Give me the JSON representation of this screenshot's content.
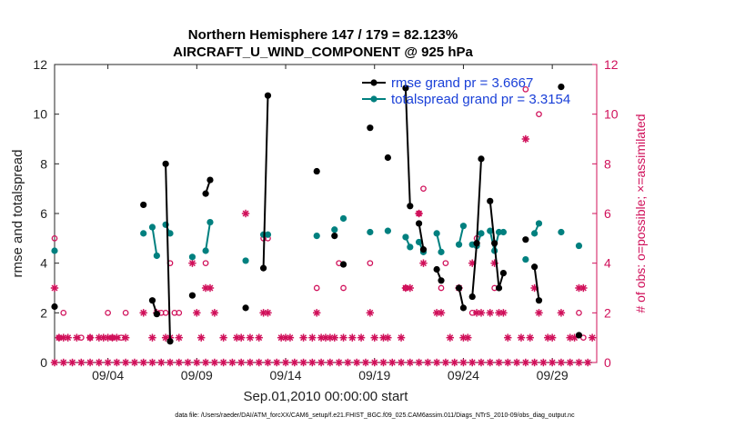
{
  "chart_data": {
    "type": "line",
    "title_line1": "Northern Hemisphere 147 / 179 = 82.123%",
    "title_line2": "AIRCRAFT_U_WIND_COMPONENT @ 925 hPa",
    "xlabel": "Sep.01,2010 00:00:00 start",
    "ylabel_left": "rmse and totalspread",
    "ylabel_right": "# of obs: o=possible; ×=assimilated",
    "footer": "data file: /Users/raeder/DAI/ATM_forcXX/CAM6_setup/f.e21.FHIST_BGC.f09_025.CAM6assim.011/Diags_NTrS_2010-09/obs_diag_output.nc",
    "xlim": [
      0,
      30.5
    ],
    "ylim_left": [
      0,
      12
    ],
    "ylim_right": [
      0,
      12
    ],
    "yticks": [
      "0",
      "2",
      "4",
      "6",
      "8",
      "10",
      "12"
    ],
    "xticks": [
      {
        "x": 3,
        "label": "09/04"
      },
      {
        "x": 8,
        "label": "09/09"
      },
      {
        "x": 13,
        "label": "09/14"
      },
      {
        "x": 18,
        "label": "09/19"
      },
      {
        "x": 23,
        "label": "09/24"
      },
      {
        "x": 28,
        "label": "09/29"
      }
    ],
    "colors": {
      "rmse": "#000000",
      "spread": "#00807f",
      "obs": "#d0105a",
      "legend_text": "#1a40d8"
    },
    "legend": [
      {
        "key": "rmse",
        "label": "rmse grand pr = 3.6667"
      },
      {
        "key": "spread",
        "label": "totalspread grand pr = 3.3154"
      }
    ],
    "rmse_segments": [
      [
        [
          0,
          2.25
        ]
      ],
      [
        [
          5.0,
          6.35
        ]
      ],
      [
        [
          5.5,
          2.5
        ],
        [
          5.75,
          1.95
        ]
      ],
      [
        [
          6.25,
          8.0
        ],
        [
          6.5,
          0.85
        ]
      ],
      [
        [
          7.75,
          2.7
        ]
      ],
      [
        [
          8.5,
          6.8
        ],
        [
          8.75,
          7.35
        ]
      ],
      [
        [
          10.75,
          2.2
        ]
      ],
      [
        [
          11.75,
          3.8
        ],
        [
          12.0,
          10.75
        ]
      ],
      [
        [
          14.75,
          7.7
        ]
      ],
      [
        [
          15.75,
          5.1
        ]
      ],
      [
        [
          16.25,
          3.95
        ]
      ],
      [
        [
          17.75,
          9.45
        ]
      ],
      [
        [
          18.75,
          8.25
        ]
      ],
      [
        [
          19.75,
          11.05
        ],
        [
          20.0,
          6.3
        ]
      ],
      [
        [
          20.5,
          5.6
        ],
        [
          20.75,
          4.55
        ]
      ],
      [
        [
          21.5,
          3.75
        ],
        [
          21.75,
          3.3
        ]
      ],
      [
        [
          22.75,
          3.0
        ],
        [
          23.0,
          2.2
        ]
      ],
      [
        [
          23.5,
          2.65
        ],
        [
          23.75,
          4.8
        ],
        [
          24.0,
          8.2
        ]
      ],
      [
        [
          24.5,
          6.5
        ],
        [
          24.75,
          4.8
        ],
        [
          25.0,
          3.0
        ],
        [
          25.25,
          3.6
        ]
      ],
      [
        [
          26.5,
          4.95
        ]
      ],
      [
        [
          27.0,
          3.85
        ],
        [
          27.25,
          2.5
        ]
      ],
      [
        [
          28.5,
          11.1
        ]
      ],
      [
        [
          29.5,
          1.1
        ]
      ]
    ],
    "spread_segments": [
      [
        [
          0,
          4.5
        ]
      ],
      [
        [
          5.0,
          5.2
        ]
      ],
      [
        [
          5.5,
          5.45
        ],
        [
          5.75,
          4.3
        ]
      ],
      [
        [
          6.25,
          5.55
        ],
        [
          6.5,
          5.2
        ]
      ],
      [
        [
          7.75,
          4.25
        ]
      ],
      [
        [
          8.5,
          4.5
        ],
        [
          8.75,
          5.65
        ]
      ],
      [
        [
          10.75,
          4.1
        ]
      ],
      [
        [
          11.75,
          5.15
        ],
        [
          12.0,
          5.15
        ]
      ],
      [
        [
          14.75,
          5.1
        ]
      ],
      [
        [
          15.75,
          5.35
        ]
      ],
      [
        [
          16.25,
          5.8
        ]
      ],
      [
        [
          17.75,
          5.25
        ]
      ],
      [
        [
          18.75,
          5.3
        ]
      ],
      [
        [
          19.75,
          5.05
        ],
        [
          20.0,
          4.65
        ]
      ],
      [
        [
          20.5,
          4.85
        ],
        [
          20.75,
          4.45
        ]
      ],
      [
        [
          21.5,
          5.2
        ],
        [
          21.75,
          4.45
        ]
      ],
      [
        [
          22.75,
          4.75
        ],
        [
          23.0,
          5.5
        ]
      ],
      [
        [
          23.5,
          4.75
        ],
        [
          23.75,
          4.7
        ],
        [
          24.0,
          5.2
        ]
      ],
      [
        [
          24.5,
          5.3
        ],
        [
          24.75,
          4.5
        ],
        [
          25.0,
          5.25
        ],
        [
          25.25,
          5.25
        ]
      ],
      [
        [
          26.5,
          4.15
        ]
      ],
      [
        [
          27.0,
          5.2
        ],
        [
          27.25,
          5.6
        ]
      ],
      [
        [
          28.5,
          5.25
        ]
      ],
      [
        [
          29.5,
          4.7
        ]
      ]
    ],
    "obs_possible": [
      [
        0.0,
        5
      ],
      [
        0.25,
        1
      ],
      [
        0.5,
        2
      ],
      [
        1.5,
        1
      ],
      [
        2.0,
        1
      ],
      [
        3.0,
        2
      ],
      [
        3.25,
        1
      ],
      [
        3.75,
        1
      ],
      [
        4.0,
        2
      ],
      [
        6.0,
        2
      ],
      [
        6.25,
        2
      ],
      [
        6.5,
        4
      ],
      [
        6.75,
        2
      ],
      [
        7.0,
        2
      ],
      [
        8.5,
        4
      ],
      [
        11.75,
        5
      ],
      [
        12.0,
        5
      ],
      [
        14.75,
        3
      ],
      [
        16.0,
        4
      ],
      [
        16.25,
        3
      ],
      [
        17.75,
        4
      ],
      [
        19.75,
        3
      ],
      [
        20.5,
        6
      ],
      [
        20.75,
        7
      ],
      [
        21.75,
        3
      ],
      [
        22.0,
        4
      ],
      [
        23.5,
        2
      ],
      [
        23.75,
        5
      ],
      [
        24.75,
        3
      ],
      [
        26.5,
        11
      ],
      [
        27.25,
        10
      ],
      [
        29.5,
        2
      ],
      [
        29.75,
        1
      ]
    ],
    "obs_assimilated": [
      [
        0.0,
        3
      ],
      [
        0.25,
        1
      ],
      [
        0.5,
        1
      ],
      [
        0.75,
        1
      ],
      [
        1.25,
        1
      ],
      [
        2.0,
        1
      ],
      [
        2.5,
        1
      ],
      [
        2.75,
        1
      ],
      [
        3.0,
        1
      ],
      [
        3.25,
        1
      ],
      [
        3.5,
        1
      ],
      [
        4.0,
        1
      ],
      [
        5.0,
        2
      ],
      [
        5.5,
        1
      ],
      [
        5.75,
        2
      ],
      [
        6.25,
        1
      ],
      [
        6.5,
        1
      ],
      [
        7.0,
        1
      ],
      [
        7.75,
        4
      ],
      [
        8.0,
        2
      ],
      [
        8.25,
        1
      ],
      [
        8.5,
        3
      ],
      [
        8.75,
        3
      ],
      [
        9.0,
        2
      ],
      [
        9.5,
        1
      ],
      [
        10.25,
        1
      ],
      [
        10.5,
        1
      ],
      [
        10.75,
        6
      ],
      [
        11.0,
        1
      ],
      [
        11.5,
        1
      ],
      [
        11.75,
        2
      ],
      [
        12.0,
        2
      ],
      [
        12.75,
        1
      ],
      [
        13.0,
        1
      ],
      [
        13.25,
        1
      ],
      [
        14.0,
        1
      ],
      [
        14.5,
        1
      ],
      [
        14.75,
        2
      ],
      [
        15.0,
        1
      ],
      [
        15.25,
        1
      ],
      [
        15.5,
        1
      ],
      [
        15.75,
        1
      ],
      [
        16.25,
        1
      ],
      [
        16.75,
        1
      ],
      [
        17.25,
        1
      ],
      [
        17.75,
        2
      ],
      [
        18.0,
        1
      ],
      [
        18.5,
        1
      ],
      [
        18.75,
        1
      ],
      [
        19.5,
        1
      ],
      [
        19.75,
        3
      ],
      [
        20.0,
        3
      ],
      [
        20.5,
        6
      ],
      [
        20.75,
        4
      ],
      [
        21.5,
        2
      ],
      [
        21.75,
        2
      ],
      [
        22.25,
        1
      ],
      [
        22.75,
        3
      ],
      [
        23.0,
        1
      ],
      [
        23.25,
        1
      ],
      [
        23.5,
        4
      ],
      [
        23.75,
        2
      ],
      [
        24.0,
        2
      ],
      [
        24.5,
        2
      ],
      [
        24.75,
        4
      ],
      [
        25.0,
        2
      ],
      [
        25.25,
        2
      ],
      [
        25.5,
        1
      ],
      [
        26.25,
        1
      ],
      [
        26.5,
        9
      ],
      [
        26.75,
        1
      ],
      [
        27.0,
        3
      ],
      [
        27.25,
        2
      ],
      [
        27.75,
        1
      ],
      [
        28.0,
        1
      ],
      [
        28.5,
        2
      ],
      [
        29.0,
        1
      ],
      [
        29.25,
        1
      ],
      [
        29.5,
        3
      ],
      [
        29.75,
        3
      ],
      [
        30.25,
        1
      ]
    ],
    "obs_zero": [
      0,
      0.5,
      1,
      1.5,
      2,
      2.5,
      3,
      3.5,
      4,
      4.5,
      5,
      5.5,
      6,
      6.5,
      7,
      7.5,
      8,
      8.5,
      9,
      9.5,
      10,
      10.5,
      11,
      11.5,
      12,
      12.5,
      13,
      13.5,
      14,
      14.5,
      15,
      15.5,
      16,
      16.5,
      17,
      17.5,
      18,
      18.5,
      19,
      19.5,
      20,
      20.5,
      21,
      21.5,
      22,
      22.5,
      23,
      23.5,
      24,
      24.5,
      25,
      25.5,
      26,
      26.5,
      27,
      27.5,
      28,
      28.5,
      29,
      29.5,
      30
    ]
  }
}
